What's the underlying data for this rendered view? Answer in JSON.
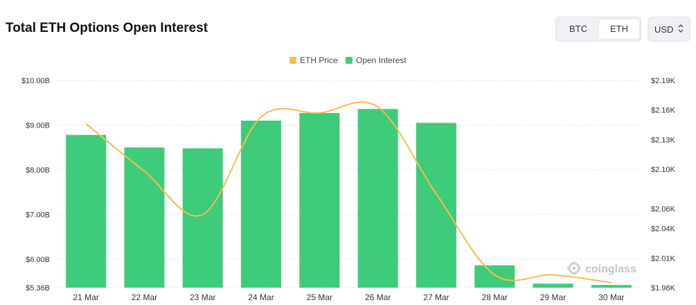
{
  "header": {
    "title": "Total ETH Options Open Interest"
  },
  "controls": {
    "asset_toggle": {
      "options": [
        "BTC",
        "ETH"
      ],
      "selected": "ETH"
    },
    "currency": {
      "value": "USD",
      "icon": "sort-icon"
    }
  },
  "watermark": {
    "text": "coinglass",
    "icon": "coinglass-logo-icon"
  },
  "colors": {
    "bar": "#3ecc7a",
    "line": "#f0bd4f",
    "grid": "#e6e6e6",
    "axis_text": "#333333"
  },
  "chart_data": {
    "type": "bar",
    "categories": [
      "21 Mar",
      "22 Mar",
      "23 Mar",
      "24 Mar",
      "25 Mar",
      "26 Mar",
      "27 Mar",
      "28 Mar",
      "29 Mar",
      "30 Mar"
    ],
    "series": [
      {
        "name": "Open Interest",
        "type": "bar",
        "axis": "left",
        "values": [
          8.78,
          8.5,
          8.48,
          9.1,
          9.27,
          9.36,
          9.05,
          5.86,
          5.45,
          5.42
        ]
      },
      {
        "name": "ETH Price",
        "type": "line",
        "axis": "right",
        "values": [
          2.146,
          2.098,
          2.054,
          2.153,
          2.157,
          2.163,
          2.075,
          1.993,
          1.993,
          1.985
        ]
      }
    ],
    "left_axis": {
      "ticks": [
        10.0,
        9.0,
        8.0,
        7.0,
        6.0,
        5.36
      ],
      "tick_labels": [
        "$10.00B",
        "$9.00B",
        "$8.00B",
        "$7.00B",
        "$6.00B",
        "$5.36B"
      ],
      "range": [
        5.36,
        10.0
      ]
    },
    "right_axis": {
      "ticks": [
        2.19,
        2.16,
        2.13,
        2.1,
        2.06,
        2.04,
        2.01,
        1.98
      ],
      "tick_labels": [
        "$2.19K",
        "$2.16K",
        "$2.13K",
        "$2.10K",
        "$2.06K",
        "$2.04K",
        "$2.01K",
        "$1.98K"
      ],
      "range": [
        1.98,
        2.19
      ]
    },
    "legend": {
      "placement": "top-center",
      "entries": [
        {
          "name": "ETH Price",
          "color": "#f0bd4f"
        },
        {
          "name": "Open Interest",
          "color": "#3ecc7a"
        }
      ]
    },
    "grid": true
  }
}
